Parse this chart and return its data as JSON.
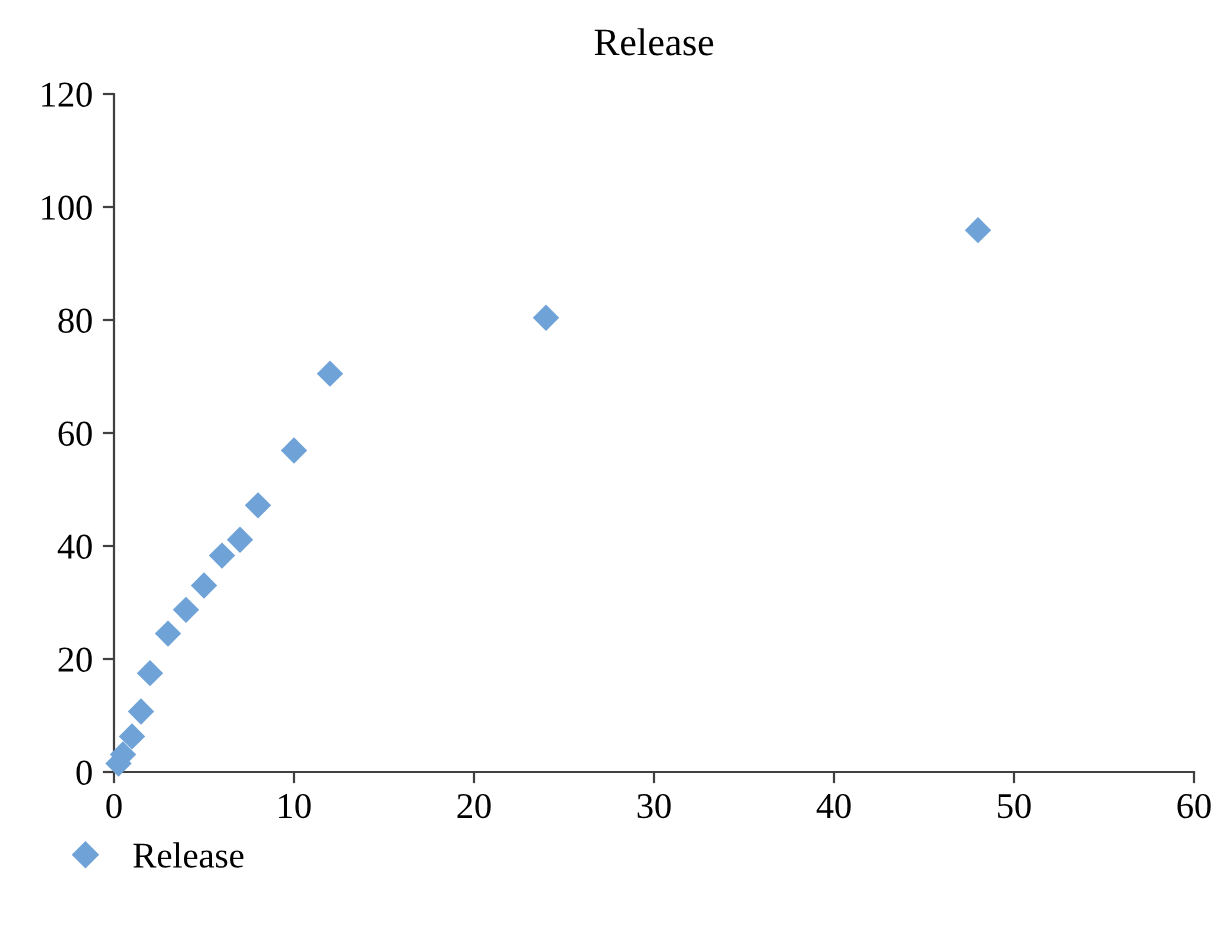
{
  "chart_data": {
    "type": "scatter",
    "title": "Release",
    "x": [
      0.25,
      0.5,
      1,
      1.5,
      2,
      3,
      4,
      5,
      6,
      7,
      8,
      10,
      12,
      24,
      48
    ],
    "series": [
      {
        "name": "Release",
        "color": "#6fa3d8",
        "values": [
          1.5,
          3.1,
          6.3,
          10.7,
          17.5,
          24.5,
          28.7,
          33.0,
          38.3,
          41.1,
          47.2,
          56.9,
          70.5,
          80.4,
          95.9
        ]
      }
    ],
    "xlim": [
      0,
      60
    ],
    "xticks": [
      0,
      10,
      20,
      30,
      40,
      50,
      60
    ],
    "ylim": [
      0,
      120
    ],
    "yticks": [
      0,
      20,
      40,
      60,
      80,
      100,
      120
    ],
    "grid": false,
    "legend": "bottom left",
    "marker": "diamond"
  }
}
